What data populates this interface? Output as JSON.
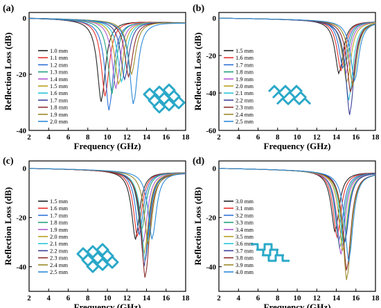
{
  "figure_panels": [
    {
      "letter": "(a)"
    },
    {
      "letter": "(b)"
    },
    {
      "letter": "(c)"
    },
    {
      "letter": "(d)"
    }
  ],
  "colors": [
    "#222222",
    "#e8302a",
    "#2a6fd6",
    "#1fa07a",
    "#b05ad0",
    "#b8a21f",
    "#29c4d8",
    "#3a3f9a",
    "#8a2a2a",
    "#9a8a2a",
    "#2a8ad8",
    "#7a4ab0"
  ],
  "structure_color": "#2aa8c8",
  "structure_icons": [
    "lattice-structure-icon",
    "zigzag-structure-icon",
    "lattice-structure-icon",
    "meander-structure-icon"
  ],
  "chart_data": [
    {
      "type": "line",
      "panel": "(a)",
      "xlabel": "Frequency (GHz)",
      "ylabel": "Reflection Loss (dB)",
      "xlim": [
        2,
        18
      ],
      "ylim": [
        -40,
        2
      ],
      "xticks": [
        "2",
        "4",
        "6",
        "8",
        "10",
        "12",
        "14",
        "16",
        "18"
      ],
      "yticks": [
        "0",
        "-20",
        "-40"
      ],
      "series": [
        {
          "name": "1.0 mm",
          "fmin": 9.4,
          "rlmin": -30
        },
        {
          "name": "1.1 mm",
          "fmin": 9.8,
          "rlmin": -28
        },
        {
          "name": "1.2 mm",
          "fmin": 10.2,
          "rlmin": -33
        },
        {
          "name": "1.3 mm",
          "fmin": 10.5,
          "rlmin": -27
        },
        {
          "name": "1.4 mm",
          "fmin": 10.9,
          "rlmin": -25
        },
        {
          "name": "1.5 mm",
          "fmin": 11.2,
          "rlmin": -24
        },
        {
          "name": "1.6 mm",
          "fmin": 11.5,
          "rlmin": -23
        },
        {
          "name": "1.7 mm",
          "fmin": 11.8,
          "rlmin": -22
        },
        {
          "name": "1.8 mm",
          "fmin": 12.2,
          "rlmin": -21
        },
        {
          "name": "1.9 mm",
          "fmin": 12.5,
          "rlmin": -20
        },
        {
          "name": "2.0 mm",
          "fmin": 12.7,
          "rlmin": -31
        }
      ]
    },
    {
      "type": "line",
      "panel": "(b)",
      "xlabel": "Frequency (GHz)",
      "ylabel": "Reflection Loss (dB)",
      "xlim": [
        2,
        18
      ],
      "ylim": [
        -60,
        3
      ],
      "xticks": [
        "2",
        "4",
        "6",
        "8",
        "10",
        "12",
        "14",
        "16",
        "18"
      ],
      "yticks": [
        "0",
        "-20",
        "-40",
        "-60"
      ],
      "series": [
        {
          "name": "1.5 mm",
          "fmin": 14.3,
          "rlmin": -30
        },
        {
          "name": "1.6 mm",
          "fmin": 14.5,
          "rlmin": -28
        },
        {
          "name": "1.7 mm",
          "fmin": 14.7,
          "rlmin": -27
        },
        {
          "name": "1.8 mm",
          "fmin": 14.9,
          "rlmin": -26
        },
        {
          "name": "1.9 mm",
          "fmin": 15.0,
          "rlmin": -30
        },
        {
          "name": "2.0 mm",
          "fmin": 15.1,
          "rlmin": -35
        },
        {
          "name": "2.1 mm",
          "fmin": 15.3,
          "rlmin": -44
        },
        {
          "name": "2.2 mm",
          "fmin": 15.4,
          "rlmin": -52
        },
        {
          "name": "2.3 mm",
          "fmin": 15.5,
          "rlmin": -40
        },
        {
          "name": "2.4 mm",
          "fmin": 15.7,
          "rlmin": -36
        },
        {
          "name": "2.5 mm",
          "fmin": 15.9,
          "rlmin": -34
        }
      ]
    },
    {
      "type": "line",
      "panel": "(c)",
      "xlabel": "Frequency (GHz)",
      "ylabel": "Reflection Loss (dB)",
      "xlim": [
        2,
        18
      ],
      "ylim": [
        -50,
        3
      ],
      "xticks": [
        "2",
        "4",
        "6",
        "8",
        "10",
        "12",
        "14",
        "16",
        "18"
      ],
      "yticks": [
        "0",
        "-20",
        "-40"
      ],
      "series": [
        {
          "name": "1.5 mm",
          "fmin": 12.9,
          "rlmin": -29
        },
        {
          "name": "1.6 mm",
          "fmin": 13.1,
          "rlmin": -28
        },
        {
          "name": "1.7 mm",
          "fmin": 13.3,
          "rlmin": -27
        },
        {
          "name": "1.8 mm",
          "fmin": 13.5,
          "rlmin": -26
        },
        {
          "name": "1.9 mm",
          "fmin": 13.7,
          "rlmin": -30
        },
        {
          "name": "2.0 mm",
          "fmin": 13.8,
          "rlmin": -35
        },
        {
          "name": "2.1 mm",
          "fmin": 13.9,
          "rlmin": -38
        },
        {
          "name": "2.2 mm",
          "fmin": 13.8,
          "rlmin": -40
        },
        {
          "name": "2.3 mm",
          "fmin": 13.9,
          "rlmin": -45
        },
        {
          "name": "2.4 mm",
          "fmin": 14.2,
          "rlmin": -31
        },
        {
          "name": "2.5 mm",
          "fmin": 14.6,
          "rlmin": -29
        }
      ]
    },
    {
      "type": "line",
      "panel": "(d)",
      "xlabel": "Frequency (GHz)",
      "ylabel": "Reflection Loss (dB)",
      "xlim": [
        2,
        18
      ],
      "ylim": [
        -50,
        3
      ],
      "xticks": [
        "2",
        "4",
        "6",
        "8",
        "10",
        "12",
        "14",
        "16",
        "18"
      ],
      "yticks": [
        "0",
        "-20",
        "-40"
      ],
      "series": [
        {
          "name": "3.0 mm",
          "fmin": 13.9,
          "rlmin": -26
        },
        {
          "name": "3.1 mm",
          "fmin": 14.1,
          "rlmin": -28
        },
        {
          "name": "3.2 mm",
          "fmin": 14.3,
          "rlmin": -30
        },
        {
          "name": "3.3 mm",
          "fmin": 14.4,
          "rlmin": -33
        },
        {
          "name": "3.4 mm",
          "fmin": 14.5,
          "rlmin": -35
        },
        {
          "name": "3.5 mm",
          "fmin": 14.7,
          "rlmin": -34
        },
        {
          "name": "3.6 mm",
          "fmin": 14.8,
          "rlmin": -32
        },
        {
          "name": "3.7 mm",
          "fmin": 14.9,
          "rlmin": -30
        },
        {
          "name": "3.8 mm",
          "fmin": 15.1,
          "rlmin": -42
        },
        {
          "name": "3.9 mm",
          "fmin": 15.1,
          "rlmin": -46
        },
        {
          "name": "4.0 mm",
          "fmin": 15.3,
          "rlmin": -38
        }
      ]
    }
  ]
}
